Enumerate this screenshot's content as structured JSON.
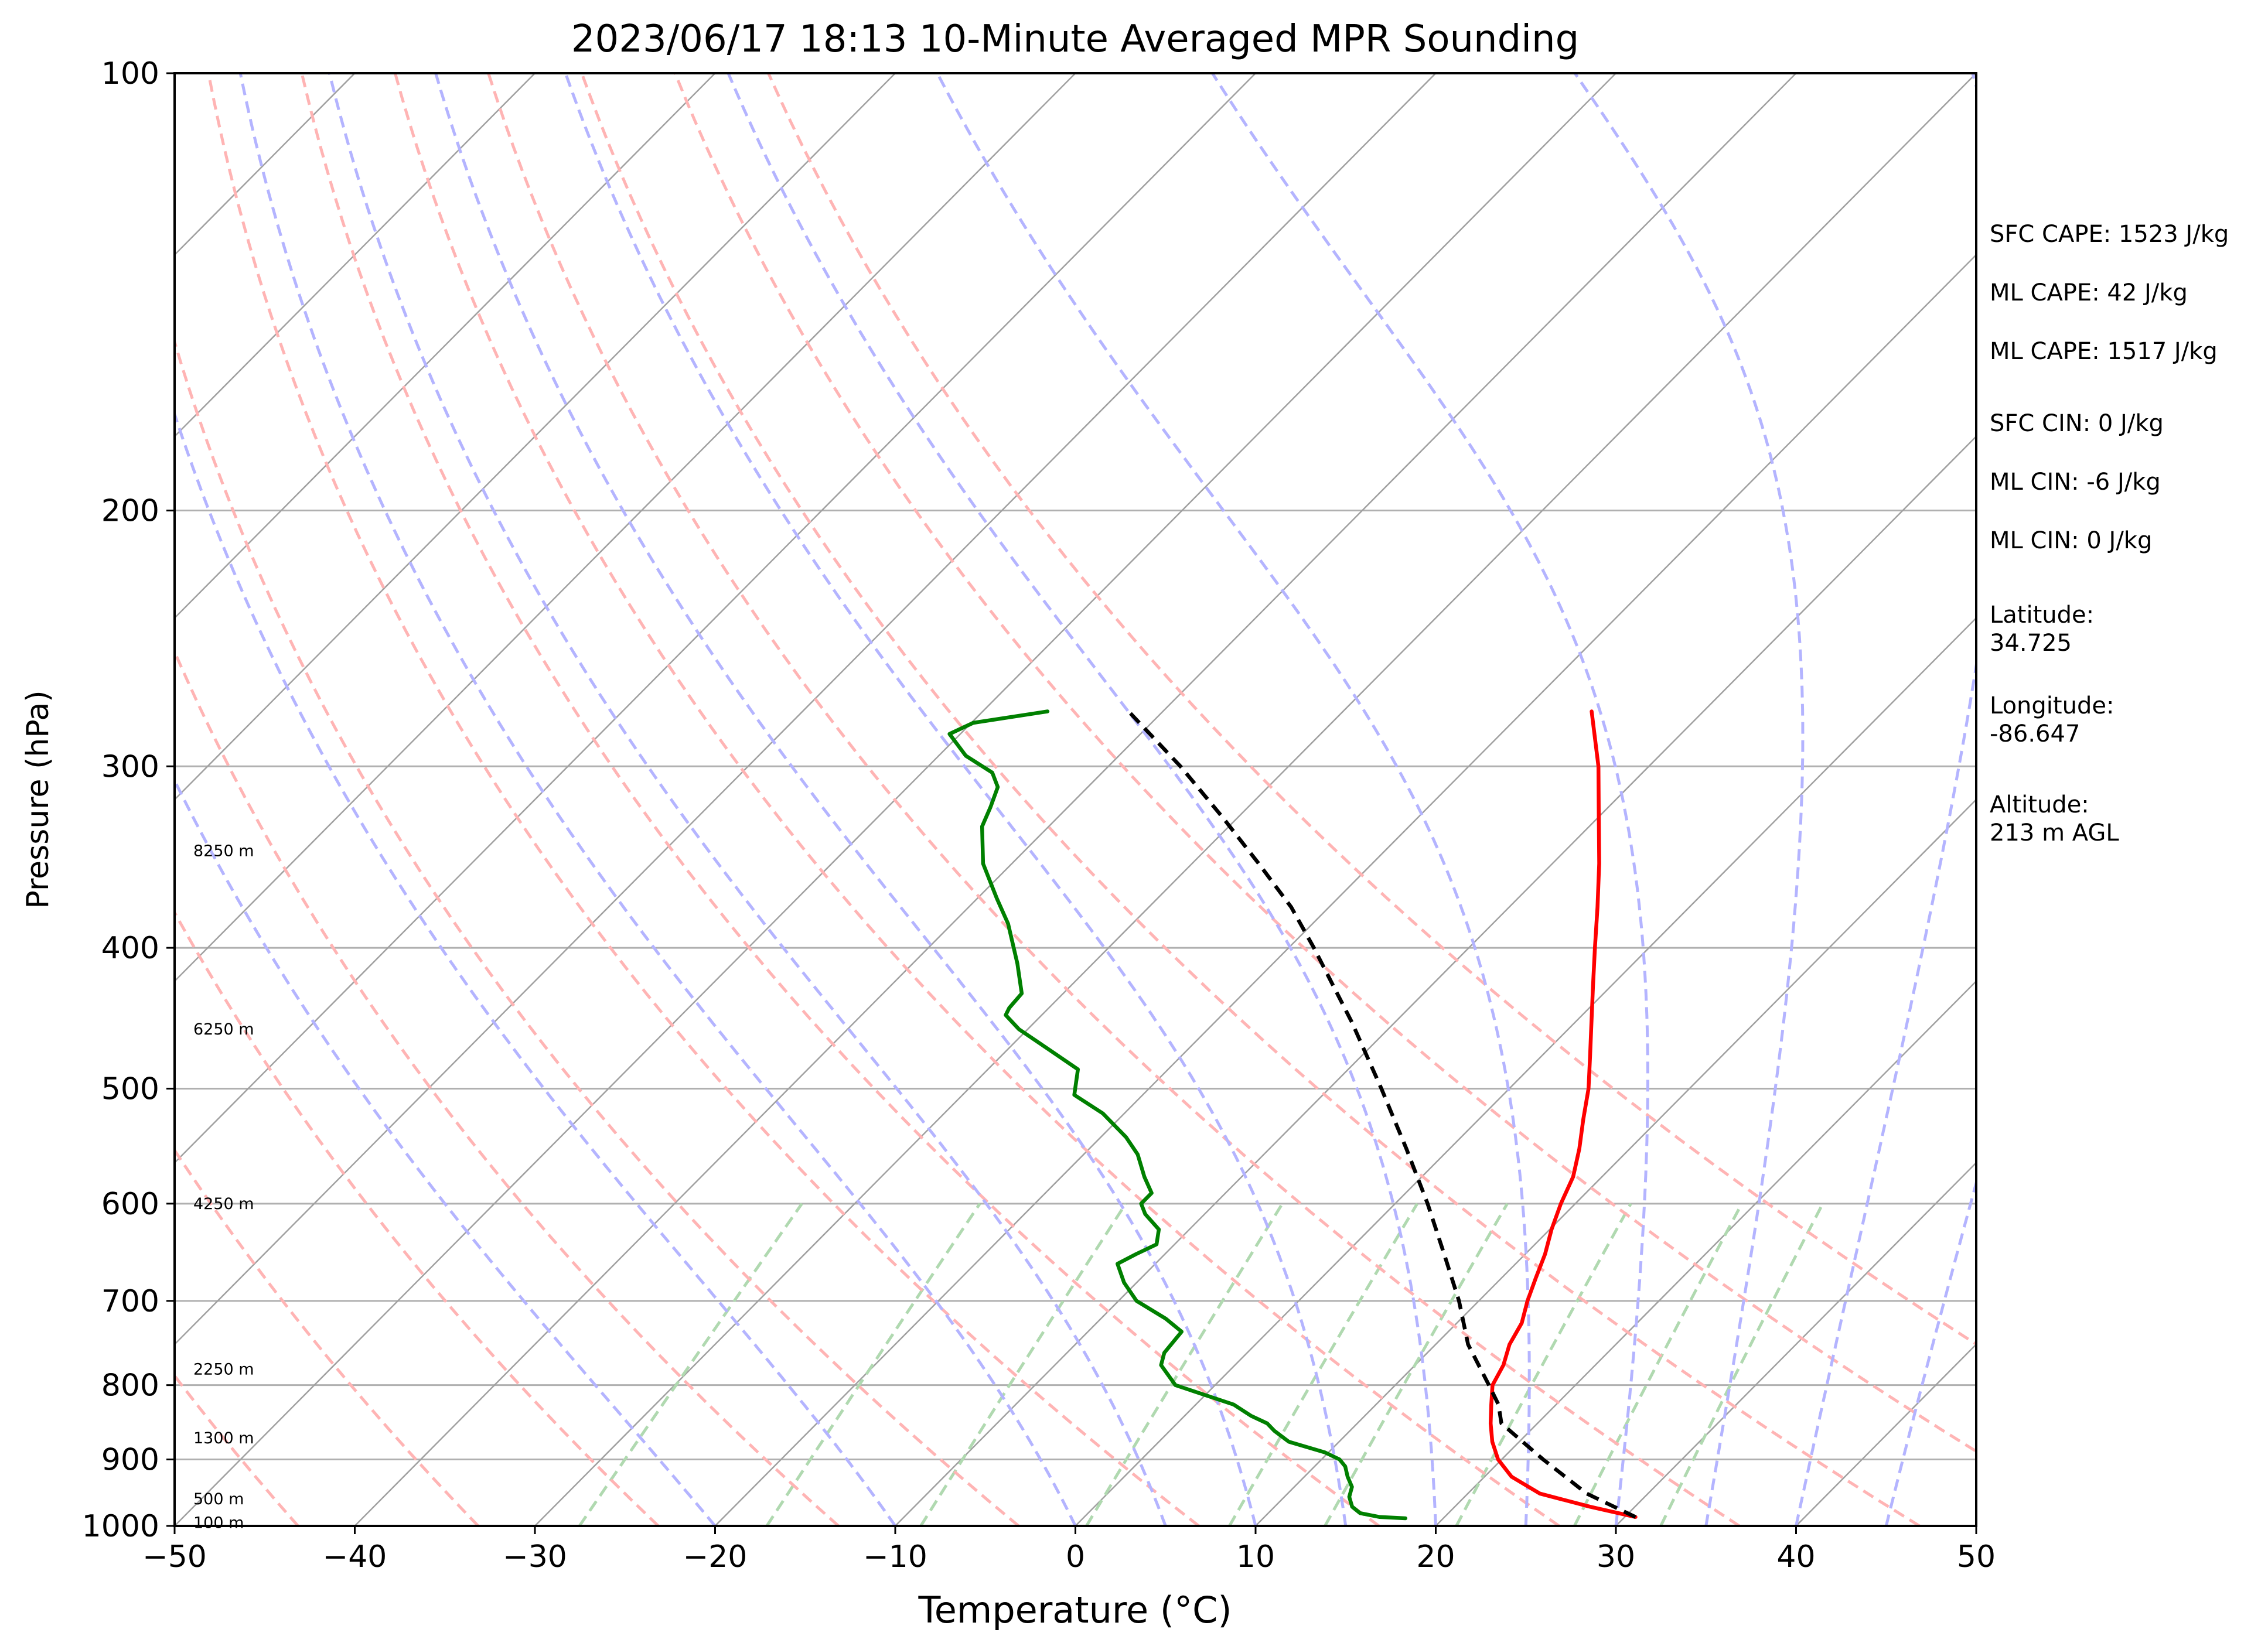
{
  "chart_data": {
    "type": "skew-t log-p sounding",
    "title": "2023/06/17 18:13 10-Minute Averaged MPR Sounding",
    "xlabel": "Temperature (°C)",
    "ylabel": "Pressure (hPa)",
    "xlim": [
      -50,
      50
    ],
    "ylim": [
      1000,
      100
    ],
    "y_scale": "log",
    "x_ticks": [
      -50,
      -40,
      -30,
      -20,
      -10,
      0,
      10,
      20,
      30,
      40,
      50
    ],
    "x_tick_labels": [
      "−50",
      "−40",
      "−30",
      "−20",
      "−10",
      "0",
      "10",
      "20",
      "30",
      "40",
      "50"
    ],
    "y_ticks": [
      100,
      200,
      300,
      400,
      500,
      600,
      700,
      800,
      900,
      1000
    ],
    "y_tick_labels": [
      "100",
      "200",
      "300",
      "400",
      "500",
      "600",
      "700",
      "800",
      "900",
      "1000"
    ],
    "grid": true,
    "series": [
      {
        "role": "temperature",
        "color": "#ff0000",
        "linestyle": "solid",
        "points": [
          [
            986,
            30.6
          ],
          [
            970,
            27.5
          ],
          [
            950,
            24.0
          ],
          [
            925,
            21.5
          ],
          [
            900,
            19.8
          ],
          [
            875,
            18.5
          ],
          [
            850,
            17.4
          ],
          [
            825,
            16.4
          ],
          [
            800,
            15.4
          ],
          [
            775,
            14.9
          ],
          [
            750,
            14.1
          ],
          [
            725,
            13.6
          ],
          [
            700,
            12.7
          ],
          [
            675,
            11.9
          ],
          [
            650,
            11.1
          ],
          [
            625,
            10.1
          ],
          [
            600,
            9.2
          ],
          [
            575,
            8.4
          ],
          [
            550,
            7.2
          ],
          [
            525,
            5.8
          ],
          [
            500,
            4.4
          ],
          [
            475,
            2.7
          ],
          [
            450,
            0.9
          ],
          [
            425,
            -1.0
          ],
          [
            400,
            -3.0
          ],
          [
            375,
            -5.1
          ],
          [
            350,
            -7.4
          ],
          [
            325,
            -10.0
          ],
          [
            300,
            -12.8
          ],
          [
            275,
            -16.2
          ]
        ]
      },
      {
        "role": "dewpoint",
        "color": "#008000",
        "linestyle": "solid",
        "points": [
          [
            988,
            17.9
          ],
          [
            986,
            16.4
          ],
          [
            980,
            15.1
          ],
          [
            970,
            14.3
          ],
          [
            955,
            13.6
          ],
          [
            940,
            13.2
          ],
          [
            925,
            12.4
          ],
          [
            910,
            11.7
          ],
          [
            900,
            11.0
          ],
          [
            890,
            9.8
          ],
          [
            875,
            7.2
          ],
          [
            860,
            5.8
          ],
          [
            850,
            5.0
          ],
          [
            840,
            3.7
          ],
          [
            825,
            2.1
          ],
          [
            800,
            -2.2
          ],
          [
            775,
            -4.1
          ],
          [
            760,
            -4.6
          ],
          [
            735,
            -4.8
          ],
          [
            720,
            -6.4
          ],
          [
            700,
            -9.0
          ],
          [
            680,
            -10.7
          ],
          [
            660,
            -12.1
          ],
          [
            650,
            -11.6
          ],
          [
            640,
            -11.0
          ],
          [
            625,
            -11.7
          ],
          [
            610,
            -13.3
          ],
          [
            600,
            -14.1
          ],
          [
            590,
            -14.1
          ],
          [
            575,
            -15.4
          ],
          [
            555,
            -17.0
          ],
          [
            540,
            -18.6
          ],
          [
            520,
            -21.2
          ],
          [
            505,
            -23.8
          ],
          [
            485,
            -25.0
          ],
          [
            470,
            -27.7
          ],
          [
            455,
            -30.5
          ],
          [
            445,
            -32.0
          ],
          [
            440,
            -32.2
          ],
          [
            430,
            -32.3
          ],
          [
            410,
            -34.2
          ],
          [
            385,
            -36.9
          ],
          [
            370,
            -38.9
          ],
          [
            350,
            -41.6
          ],
          [
            330,
            -43.7
          ],
          [
            320,
            -44.3
          ],
          [
            310,
            -45.0
          ],
          [
            303,
            -46.1
          ],
          [
            295,
            -48.5
          ],
          [
            285,
            -50.6
          ],
          [
            280,
            -49.9
          ],
          [
            275,
            -46.4
          ]
        ]
      },
      {
        "role": "parcel profile",
        "color": "#000000",
        "linestyle": "dashed",
        "points": [
          [
            986,
            30.6
          ],
          [
            950,
            26.6
          ],
          [
            900,
            22.3
          ],
          [
            850,
            18.0
          ],
          [
            825,
            16.8
          ],
          [
            800,
            15.2
          ],
          [
            750,
            11.8
          ],
          [
            700,
            8.9
          ],
          [
            650,
            5.5
          ],
          [
            600,
            1.8
          ],
          [
            550,
            -2.4
          ],
          [
            500,
            -7.1
          ],
          [
            450,
            -12.4
          ],
          [
            400,
            -18.6
          ],
          [
            375,
            -22.1
          ],
          [
            350,
            -26.3
          ],
          [
            325,
            -30.9
          ],
          [
            300,
            -36.0
          ],
          [
            275,
            -41.9
          ]
        ]
      }
    ],
    "reference_lines": [
      {
        "kind": "isotherm",
        "color": "#a0a0a0",
        "linestyle": "solid",
        "interval_c": 10
      },
      {
        "kind": "dry adiabat",
        "color": "#ffb4b4",
        "linestyle": "dashed",
        "theta_k": [
          230,
          240,
          250,
          260,
          270,
          280,
          290,
          300,
          310,
          320,
          330,
          340
        ]
      },
      {
        "kind": "moist adiabat",
        "color": "#b4b4ff",
        "linestyle": "dashed",
        "start_t_c_at_1000": [
          -20,
          -10,
          0,
          5,
          10,
          15,
          20,
          25,
          30,
          35,
          40,
          45,
          50
        ]
      },
      {
        "kind": "mixing ratio",
        "color": "#b0d9b0",
        "linestyle": "dashed",
        "g_per_kg": [
          0.4,
          1,
          2,
          4,
          7,
          10,
          16,
          24,
          32
        ],
        "top_hpa": 600
      }
    ],
    "height_labels": [
      {
        "label": "8250 m",
        "pressure": 343
      },
      {
        "label": "6250 m",
        "pressure": 455
      },
      {
        "label": "4250 m",
        "pressure": 600
      },
      {
        "label": "2250 m",
        "pressure": 780
      },
      {
        "label": "1300 m",
        "pressure": 870
      },
      {
        "label": "500 m",
        "pressure": 958
      },
      {
        "label": "100 m",
        "pressure": 995
      }
    ],
    "annotations": [
      "SFC CAPE: 1523 J/kg",
      "ML CAPE: 42 J/kg",
      "ML CAPE: 1517 J/kg",
      "SFC CIN: 0 J/kg",
      "ML CIN: -6 J/kg",
      "ML CIN: 0 J/kg",
      [
        "Latitude:",
        "34.725"
      ],
      [
        "Longitude:",
        "-86.647"
      ],
      [
        "Altitude:",
        "213 m AGL"
      ]
    ]
  }
}
